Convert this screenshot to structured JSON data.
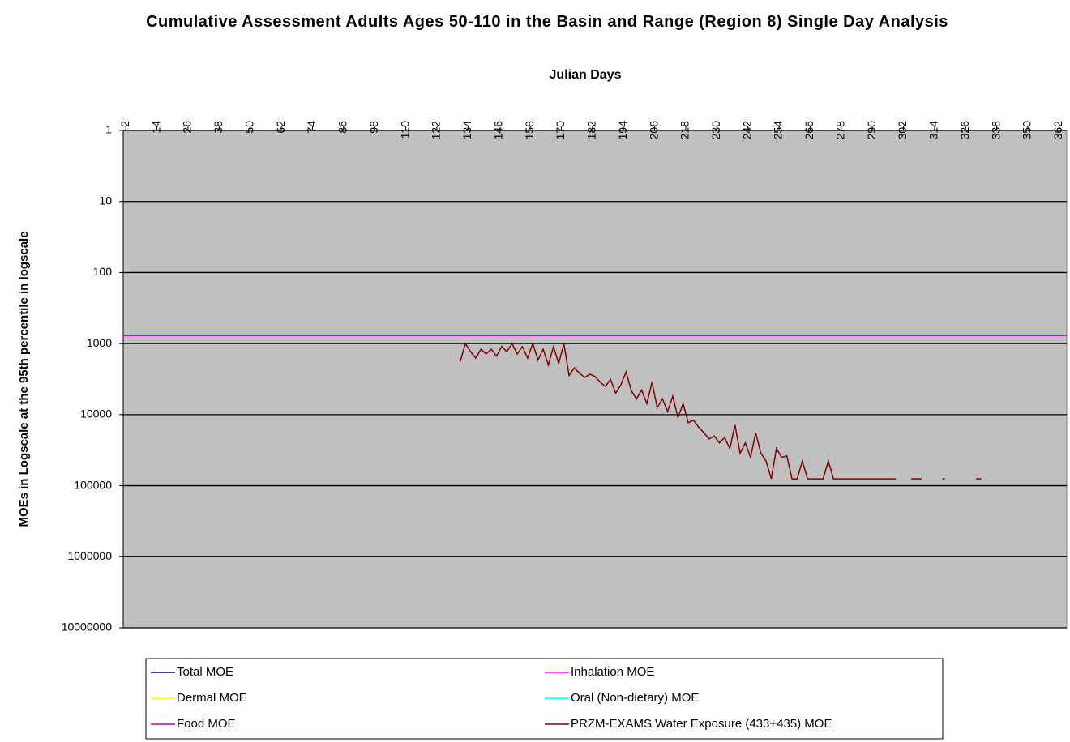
{
  "chart_data": {
    "type": "line",
    "title": "Cumulative Assessment Adults Ages 50-110 in the Basin and Range (Region 8) Single Day Analysis",
    "x_label": "Julian Days",
    "y_label": "MOEs in Logscale at the 95th percentile in logscale",
    "xlim": [
      1,
      365
    ],
    "xticks": [
      2,
      14,
      26,
      38,
      50,
      62,
      74,
      86,
      98,
      110,
      122,
      134,
      146,
      158,
      170,
      182,
      194,
      206,
      218,
      230,
      242,
      254,
      266,
      278,
      290,
      302,
      314,
      326,
      338,
      350,
      362
    ],
    "ylim": [
      1,
      10000000
    ],
    "yticks": [
      1,
      10,
      100,
      1000,
      10000,
      100000,
      1000000,
      10000000
    ],
    "log_y": true,
    "y_reversed": true,
    "grid": true,
    "legend": "bottom",
    "plot_color": "#c0c0c0",
    "series": [
      {
        "name": "Total MOE",
        "color": "#000080",
        "x": [],
        "values": []
      },
      {
        "name": "Inhalation MOE",
        "color": "#ff00ff",
        "x": [],
        "values": []
      },
      {
        "name": "Dermal MOE",
        "color": "#ffff00",
        "x": [],
        "values": []
      },
      {
        "name": "Oral (Non-dietary) MOE",
        "color": "#00ffff",
        "x": [],
        "values": []
      },
      {
        "name": "Food MOE",
        "color": "#c000c0",
        "x": [
          1,
          365
        ],
        "values": [
          770,
          770
        ]
      },
      {
        "name": "PRZM-EXAMS Water Exposure (433+435) MOE",
        "color": "#800000",
        "x": [
          131,
          133,
          135,
          137,
          139,
          141,
          143,
          145,
          147,
          149,
          151,
          153,
          155,
          157,
          159,
          161,
          163,
          165,
          167,
          169,
          171,
          173,
          175,
          177,
          179,
          181,
          183,
          185,
          187,
          189,
          191,
          193,
          195,
          197,
          199,
          201,
          203,
          205,
          207,
          209,
          211,
          213,
          215,
          217,
          219,
          221,
          223,
          225,
          227,
          229,
          231,
          233,
          235,
          237,
          239,
          241,
          243,
          245,
          247,
          249,
          251,
          253,
          255,
          257,
          259,
          261,
          263,
          265,
          267,
          269,
          271,
          273,
          275,
          277,
          285,
          299,
          null,
          305,
          309,
          null,
          317,
          318,
          null,
          330,
          332
        ],
        "values": [
          1800,
          1000,
          1300,
          1600,
          1200,
          1400,
          1200,
          1500,
          1100,
          1300,
          1000,
          1400,
          1100,
          1600,
          1000,
          1700,
          1200,
          2000,
          1100,
          1900,
          1000,
          2800,
          2200,
          2600,
          3000,
          2700,
          2900,
          3500,
          4000,
          3200,
          5000,
          3800,
          2500,
          4600,
          6000,
          4500,
          7000,
          3500,
          8000,
          6000,
          9000,
          5500,
          11000,
          7000,
          13000,
          12000,
          15000,
          18000,
          22000,
          20000,
          25000,
          21000,
          30000,
          14000,
          35000,
          25000,
          40000,
          18000,
          35000,
          45000,
          80000,
          30000,
          40000,
          38000,
          80000,
          80000,
          45000,
          80000,
          80000,
          80000,
          80000,
          45000,
          80000,
          80000,
          80000,
          80000,
          null,
          80000,
          80000,
          null,
          80000,
          80000,
          null,
          80000,
          80000
        ]
      }
    ]
  }
}
